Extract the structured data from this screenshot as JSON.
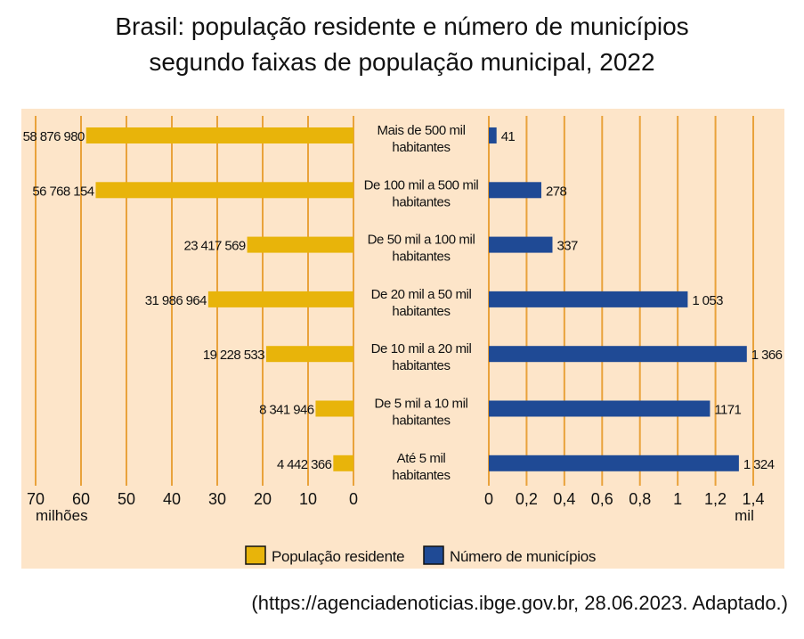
{
  "title": {
    "line1": "Brasil: população residente e número de municípios",
    "line2": "segundo faixas de população municipal, 2022"
  },
  "source": "(https://agenciadenoticias.ibge.gov.br, 28.06.2023. Adaptado.)",
  "colors": {
    "background_panel": "#fde5c9",
    "population_bar": "#e8b40a",
    "municipalities_bar": "#1f4a95",
    "gridline": "#e9a23b"
  },
  "chart_data": [
    {
      "type": "bar",
      "orientation": "horizontal",
      "direction": "right-to-left",
      "series": [
        {
          "name": "População residente",
          "values": [
            58876980,
            56768154,
            23417569,
            31986964,
            19228533,
            8341946,
            4442366
          ]
        }
      ],
      "data_labels": [
        "58 876 980",
        "56 768 154",
        "23 417 569",
        "31 986 964",
        "19 228 533",
        "8 341 946",
        "4 442 366"
      ],
      "xlim": [
        0,
        70
      ],
      "x_ticks": [
        "70",
        "60",
        "50",
        "40",
        "30",
        "20",
        "10",
        "0"
      ],
      "xlabel": "milhões",
      "grid": true
    },
    {
      "type": "bar",
      "orientation": "horizontal",
      "series": [
        {
          "name": "Número de municípios",
          "values": [
            41,
            278,
            337,
            1053,
            1366,
            1171,
            1324
          ]
        }
      ],
      "data_labels": [
        "41",
        "278",
        "337",
        "1 053",
        "1 366",
        "1171",
        "1 324"
      ],
      "xlim": [
        0,
        1.4
      ],
      "x_ticks": [
        "0",
        "0,2",
        "0,4",
        "0,6",
        "0,8",
        "1",
        "1,2",
        "1,4"
      ],
      "xlabel": "mil",
      "grid": true
    }
  ],
  "categories": [
    [
      "Mais de 500 mil",
      "habitantes"
    ],
    [
      "De 100 mil a 500 mil",
      "habitantes"
    ],
    [
      "De 50 mil a 100 mil",
      "habitantes"
    ],
    [
      "De 20 mil a 50 mil",
      "habitantes"
    ],
    [
      "De 10 mil a 20 mil",
      "habitantes"
    ],
    [
      "De 5 mil a 10 mil",
      "habitantes"
    ],
    [
      "Até 5 mil",
      "habitantes"
    ]
  ],
  "legend": {
    "population": "População residente",
    "municipalities": "Número de municípios"
  }
}
